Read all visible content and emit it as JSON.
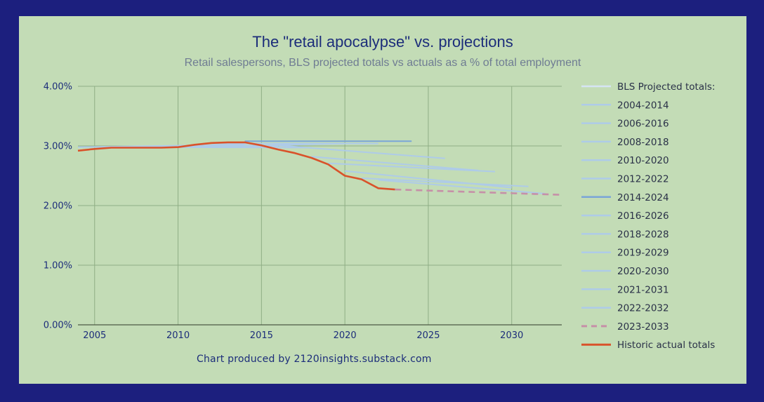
{
  "chart_data": {
    "type": "line",
    "title": "The \"retail apocalypse\" vs. projections",
    "subtitle": "Retail salespersons, BLS projected totals vs actuals as a % of total employment",
    "credit": "Chart produced by 2120insights.substack.com",
    "xlabel": "",
    "ylabel": "",
    "xlim": [
      2004,
      2033
    ],
    "ylim": [
      0,
      0.04
    ],
    "x_ticks": [
      2005,
      2010,
      2015,
      2020,
      2025,
      2030
    ],
    "x_tick_labels": [
      "2005",
      "2010",
      "2015",
      "2020",
      "2025",
      "2030"
    ],
    "y_ticks": [
      0,
      0.01,
      0.02,
      0.03,
      0.04
    ],
    "y_tick_labels": [
      "0.00%",
      "1.00%",
      "2.00%",
      "3.00%",
      "4.00%"
    ],
    "grid": true,
    "legend_position": "right",
    "legend_header": "BLS Projected totals:",
    "series": [
      {
        "name": "2004-2014",
        "style": "solid",
        "color": "#aecbe8",
        "x": [
          2004,
          2014
        ],
        "y": [
          0.0298,
          0.0302
        ]
      },
      {
        "name": "2006-2016",
        "style": "solid",
        "color": "#aecbe8",
        "x": [
          2006,
          2016
        ],
        "y": [
          0.0298,
          0.03
        ]
      },
      {
        "name": "2008-2018",
        "style": "solid",
        "color": "#aecbe8",
        "x": [
          2008,
          2018
        ],
        "y": [
          0.0298,
          0.0297
        ]
      },
      {
        "name": "2010-2020",
        "style": "solid",
        "color": "#aecbe8",
        "x": [
          2010,
          2020
        ],
        "y": [
          0.0298,
          0.0304
        ]
      },
      {
        "name": "2012-2022",
        "style": "solid",
        "color": "#aecbe8",
        "x": [
          2012,
          2022
        ],
        "y": [
          0.0304,
          0.0304
        ]
      },
      {
        "name": "2014-2024",
        "style": "solid",
        "color": "#7aa5d8",
        "x": [
          2014,
          2024
        ],
        "y": [
          0.0308,
          0.0308
        ]
      },
      {
        "name": "2016-2026",
        "style": "solid",
        "color": "#aecbe8",
        "x": [
          2016,
          2026
        ],
        "y": [
          0.0301,
          0.0279
        ]
      },
      {
        "name": "2018-2028",
        "style": "solid",
        "color": "#aecbe8",
        "x": [
          2018,
          2028
        ],
        "y": [
          0.0282,
          0.0259
        ]
      },
      {
        "name": "2019-2029",
        "style": "solid",
        "color": "#aecbe8",
        "x": [
          2019,
          2029
        ],
        "y": [
          0.0271,
          0.0257
        ]
      },
      {
        "name": "2020-2030",
        "style": "solid",
        "color": "#aecbe8",
        "x": [
          2020,
          2030
        ],
        "y": [
          0.0258,
          0.023
        ]
      },
      {
        "name": "2021-2031",
        "style": "solid",
        "color": "#aecbe8",
        "x": [
          2021,
          2031
        ],
        "y": [
          0.0246,
          0.0232
        ]
      },
      {
        "name": "2022-2032",
        "style": "solid",
        "color": "#aecbe8",
        "x": [
          2022,
          2032
        ],
        "y": [
          0.0243,
          0.022
        ]
      },
      {
        "name": "2023-2033",
        "style": "dashed",
        "color": "#c690a8",
        "x": [
          2023,
          2033
        ],
        "y": [
          0.0227,
          0.0218
        ]
      },
      {
        "name": "Historic actual totals",
        "style": "solid",
        "color": "#d9522a",
        "x": [
          2004,
          2005,
          2006,
          2007,
          2008,
          2009,
          2010,
          2011,
          2012,
          2013,
          2014,
          2015,
          2016,
          2017,
          2018,
          2019,
          2020,
          2021,
          2022,
          2023
        ],
        "y": [
          0.0292,
          0.0295,
          0.0297,
          0.0297,
          0.0297,
          0.0297,
          0.0298,
          0.0302,
          0.0305,
          0.0306,
          0.0306,
          0.0301,
          0.0294,
          0.0288,
          0.028,
          0.0269,
          0.025,
          0.0244,
          0.0229,
          0.0227
        ]
      }
    ]
  }
}
